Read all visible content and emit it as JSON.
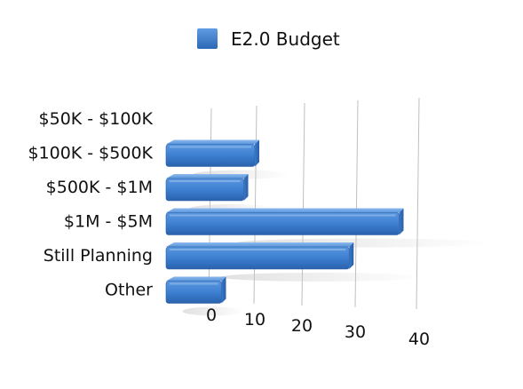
{
  "chart_data": {
    "type": "bar",
    "orientation": "horizontal",
    "style": "3d",
    "title": "",
    "xlabel": "",
    "ylabel": "",
    "categories": [
      "$50K - $100K",
      "$100K - $500K",
      "$500K - $1M",
      "$1M - $5M",
      "Still Planning",
      "Other"
    ],
    "series": [
      {
        "name": "E2.0 Budget",
        "color": "#3d7fd1",
        "values": [
          0,
          16,
          14,
          42,
          33,
          10
        ]
      }
    ],
    "xlim": [
      0,
      40
    ],
    "xticks": [
      "0",
      "10",
      "20",
      "30",
      "40"
    ],
    "grid": true,
    "legend_position": "top"
  }
}
